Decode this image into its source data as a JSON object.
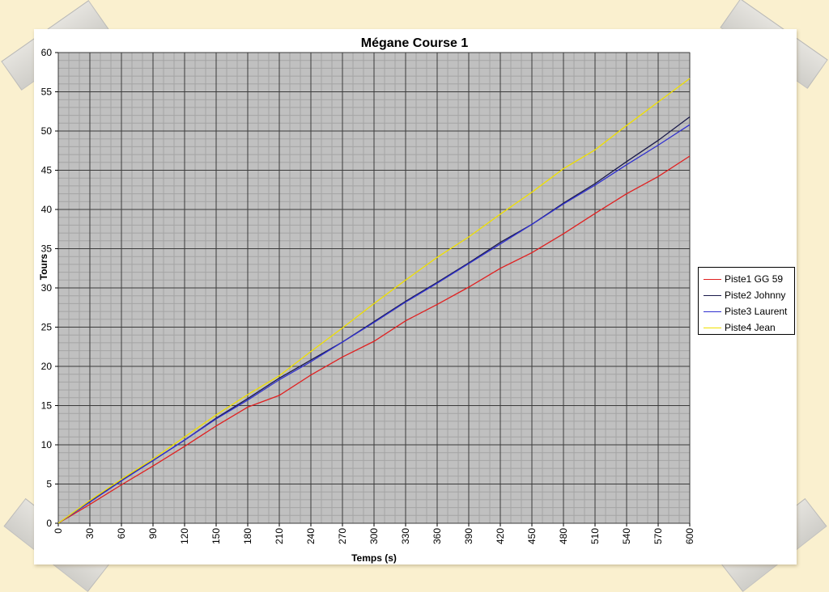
{
  "chart_data": {
    "type": "line",
    "title": "Mégane Course 1",
    "xlabel": "Temps (s)",
    "ylabel": "Tours",
    "xlim": [
      0,
      600
    ],
    "ylim": [
      0,
      60
    ],
    "x_ticks": [
      0,
      30,
      60,
      90,
      120,
      150,
      180,
      210,
      240,
      270,
      300,
      330,
      360,
      390,
      420,
      450,
      480,
      510,
      540,
      570,
      600
    ],
    "y_ticks": [
      0,
      5,
      10,
      15,
      20,
      25,
      30,
      35,
      40,
      45,
      50,
      55,
      60
    ],
    "grid": true,
    "legend_position": "right",
    "x": [
      0,
      30,
      60,
      90,
      120,
      150,
      180,
      210,
      240,
      270,
      300,
      330,
      360,
      390,
      420,
      450,
      480,
      510,
      540,
      570,
      600
    ],
    "series": [
      {
        "name": "Piste1 GG 59",
        "color": "#e02020",
        "values": [
          0,
          2.4,
          4.9,
          7.3,
          9.8,
          12.4,
          14.8,
          16.3,
          18.9,
          21.2,
          23.2,
          25.8,
          27.9,
          30.1,
          32.5,
          34.5,
          36.9,
          39.5,
          42.0,
          44.2,
          46.8
        ]
      },
      {
        "name": "Piste2 Johnny",
        "color": "#1a1a4a",
        "values": [
          0,
          2.8,
          5.5,
          8.0,
          10.6,
          13.4,
          15.9,
          18.5,
          20.8,
          23.1,
          25.7,
          28.3,
          30.7,
          33.2,
          35.8,
          38.1,
          40.8,
          43.3,
          46.1,
          48.8,
          51.8
        ]
      },
      {
        "name": "Piste3 Laurent",
        "color": "#3030d0",
        "values": [
          0,
          2.7,
          5.4,
          8.0,
          10.6,
          13.3,
          15.7,
          18.3,
          20.6,
          23.1,
          25.6,
          28.2,
          30.6,
          33.1,
          35.6,
          38.1,
          40.7,
          43.1,
          45.7,
          48.2,
          50.8
        ]
      },
      {
        "name": "Piste4 Jean",
        "color": "#f0e000",
        "values": [
          0,
          2.9,
          5.6,
          8.2,
          11.0,
          13.8,
          16.4,
          18.8,
          21.9,
          24.9,
          28.0,
          31.0,
          33.9,
          36.5,
          39.4,
          42.2,
          45.2,
          47.6,
          50.7,
          53.7,
          56.7
        ]
      }
    ]
  }
}
